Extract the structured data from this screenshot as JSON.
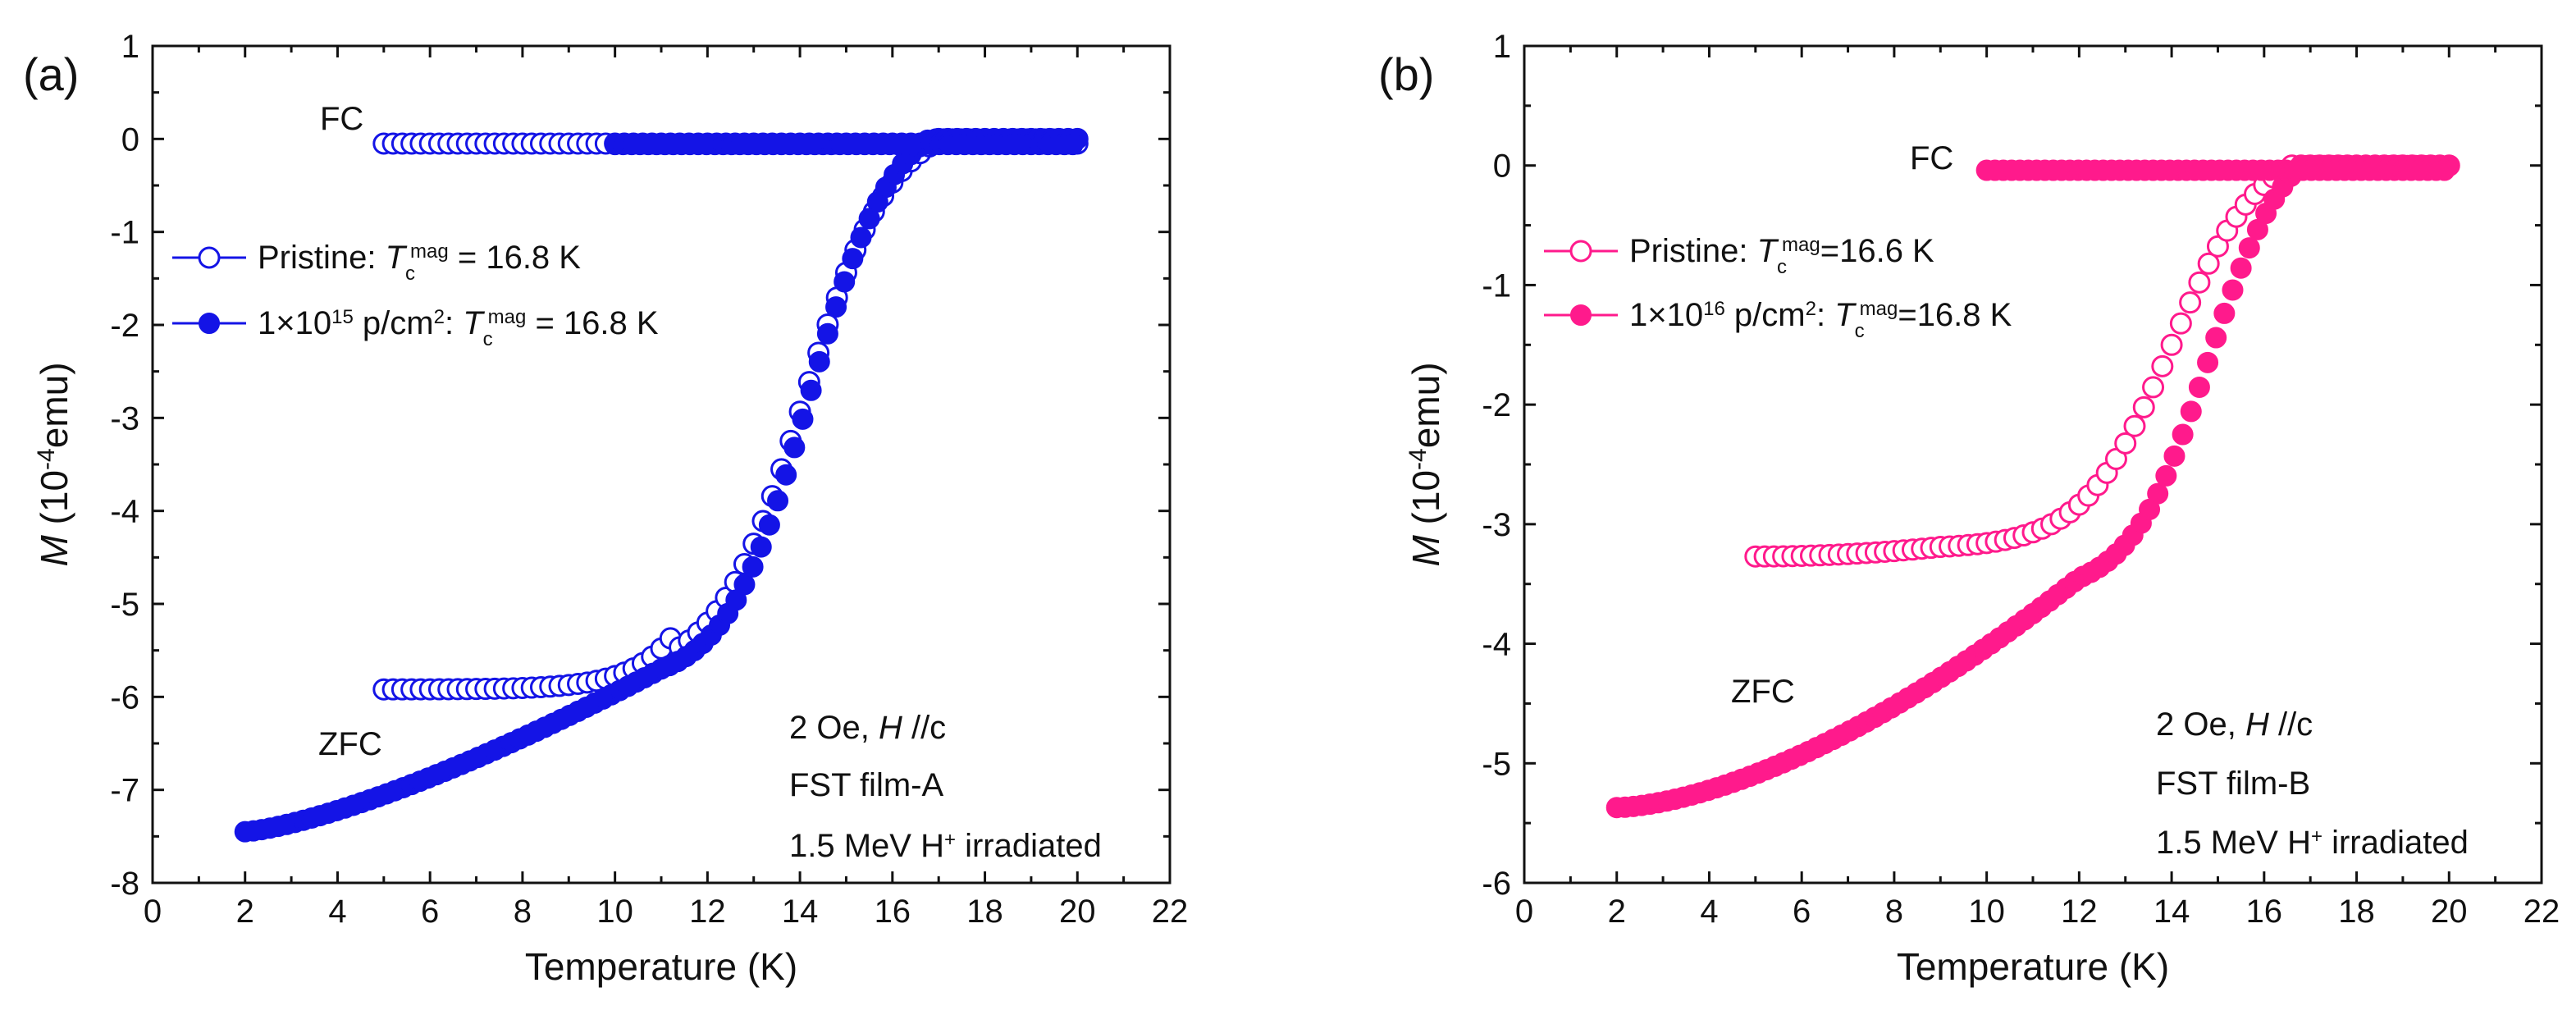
{
  "chart_data": [
    {
      "type": "scatter",
      "panel_label": "(a)",
      "xlabel": "Temperature (K)",
      "ylabel": {
        "symbol": "M",
        "unit_prefix": " (10",
        "unit_exp": "-4",
        "unit_suffix": "emu)"
      },
      "xlim": [
        0,
        22
      ],
      "ylim": [
        -8,
        1
      ],
      "xticks": [
        0,
        2,
        4,
        6,
        8,
        10,
        12,
        14,
        16,
        18,
        20,
        22
      ],
      "yticks": [
        1,
        0,
        -1,
        -2,
        -3,
        -4,
        -5,
        -6,
        -7,
        -8
      ],
      "color": "#1414e6",
      "legend": {
        "placement": "top-left",
        "entries": [
          {
            "name": "Pristine: ",
            "tc": "T",
            "tc_sub": "c",
            "tc_sup": "mag",
            "value": " = 16.8 K",
            "marker": "open"
          },
          {
            "name": "1×10",
            "name_sup": "15",
            "name_rest": " p/cm",
            "name_sup2": "2",
            "name_end": ": ",
            "tc": "T",
            "tc_sub": "c",
            "tc_sup": "mag",
            "value": " = 16.8 K",
            "marker": "filled"
          }
        ]
      },
      "annotations": {
        "fc": "FC",
        "zfc": "ZFC",
        "field_prefix": "2 Oe, ",
        "field_H": "H",
        "field_suffix": " //c",
        "film": "FST film-A",
        "irr_prefix": "1.5 MeV H",
        "irr_sup": "+",
        "irr_suffix": " irradiated"
      },
      "series": [
        {
          "name": "Pristine ZFC",
          "marker": "open",
          "tmin": 5.0,
          "tmax": 20.0,
          "tc": 16.8,
          "floor": -5.92,
          "model": "pristine_a",
          "step": 0.2
        },
        {
          "name": "Pristine FC",
          "marker": "open",
          "tmin": 5.0,
          "tmax": 20.0,
          "value": -0.05,
          "model": "flat",
          "step": 0.2
        },
        {
          "name": "1e15 ZFC",
          "marker": "filled",
          "tmin": 2.0,
          "tmax": 20.0,
          "tc": 16.8,
          "model": "irr_a",
          "step": 0.18
        },
        {
          "name": "1e15 FC",
          "marker": "filled",
          "tmin": 10.0,
          "tmax": 20.0,
          "value": -0.06,
          "model": "flat",
          "step": 0.18
        }
      ]
    },
    {
      "type": "scatter",
      "panel_label": "(b)",
      "xlabel": "Temperature (K)",
      "ylabel": {
        "symbol": "M",
        "unit_prefix": " (10",
        "unit_exp": "-4",
        "unit_suffix": "emu)"
      },
      "xlim": [
        0,
        22
      ],
      "ylim": [
        -6,
        1
      ],
      "xticks": [
        0,
        2,
        4,
        6,
        8,
        10,
        12,
        14,
        16,
        18,
        20,
        22
      ],
      "yticks": [
        1,
        0,
        -1,
        -2,
        -3,
        -4,
        -5,
        -6
      ],
      "color": "#ff1a8c",
      "legend": {
        "placement": "top-left",
        "entries": [
          {
            "name": "Pristine: ",
            "tc": "T",
            "tc_sub": "c",
            "tc_sup": "mag",
            "value": "=16.6 K",
            "marker": "open"
          },
          {
            "name": "1×10",
            "name_sup": "16",
            "name_rest": " p/cm",
            "name_sup2": "2",
            "name_end": ": ",
            "tc": "T",
            "tc_sub": "c",
            "tc_sup": "mag",
            "value": "=16.8 K",
            "marker": "filled"
          }
        ]
      },
      "annotations": {
        "fc": "FC",
        "zfc": "ZFC",
        "field_prefix": "2 Oe, ",
        "field_H": "H",
        "field_suffix": " //c",
        "film": "FST film-B",
        "irr_prefix": "1.5 MeV H",
        "irr_sup": "+",
        "irr_suffix": " irradiated"
      },
      "series": [
        {
          "name": "Pristine ZFC",
          "marker": "open",
          "tmin": 5.0,
          "tmax": 20.0,
          "tc": 16.6,
          "floor": -3.27,
          "model": "pristine_b",
          "step": 0.2
        },
        {
          "name": "1e16 ZFC",
          "marker": "filled",
          "tmin": 2.0,
          "tmax": 20.0,
          "tc": 16.8,
          "model": "irr_b",
          "step": 0.18
        },
        {
          "name": "1e16 FC",
          "marker": "filled",
          "tmin": 10.0,
          "tmax": 20.0,
          "value": -0.04,
          "model": "flat",
          "step": 0.18
        }
      ]
    }
  ]
}
